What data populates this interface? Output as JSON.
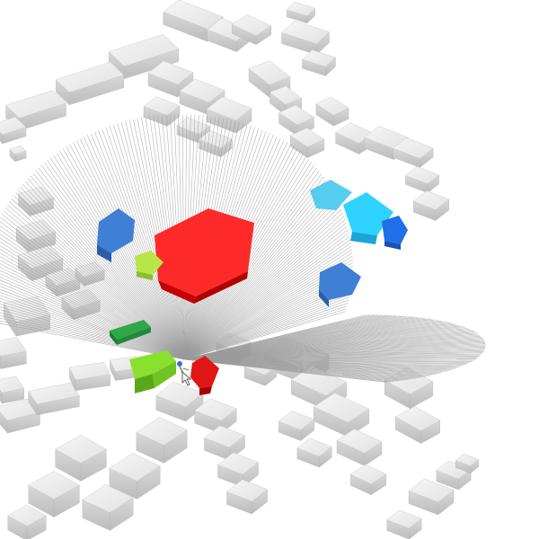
{
  "viewport": {
    "background": "#ffffff"
  },
  "palette": {
    "building_top": "#eeeeee",
    "building_side": "#c9c9c9",
    "building_shadow": "#b4b4b4",
    "ray": "#9a9a9a",
    "visible_red": "#ff1a1a",
    "visible_red_side": "#cc0000",
    "highlight_blue": "#3f7fd6",
    "highlight_blue_side": "#2f64b0",
    "highlight_cyan": "#2fd3ff",
    "highlight_cyan_side": "#1aa6d6",
    "highlight_deep_blue": "#1f6fe6",
    "highlight_green": "#7fdc2a",
    "highlight_green_side": "#5aa81a",
    "highlight_lime": "#b6e64a",
    "highlight_dark_green": "#2ea84a",
    "observer_marker": "#e01515",
    "observer_glyph": "#3a6fd6"
  },
  "icons": {
    "observer": "observer-pin-icon",
    "cursor": "mouse-pointer-icon"
  }
}
